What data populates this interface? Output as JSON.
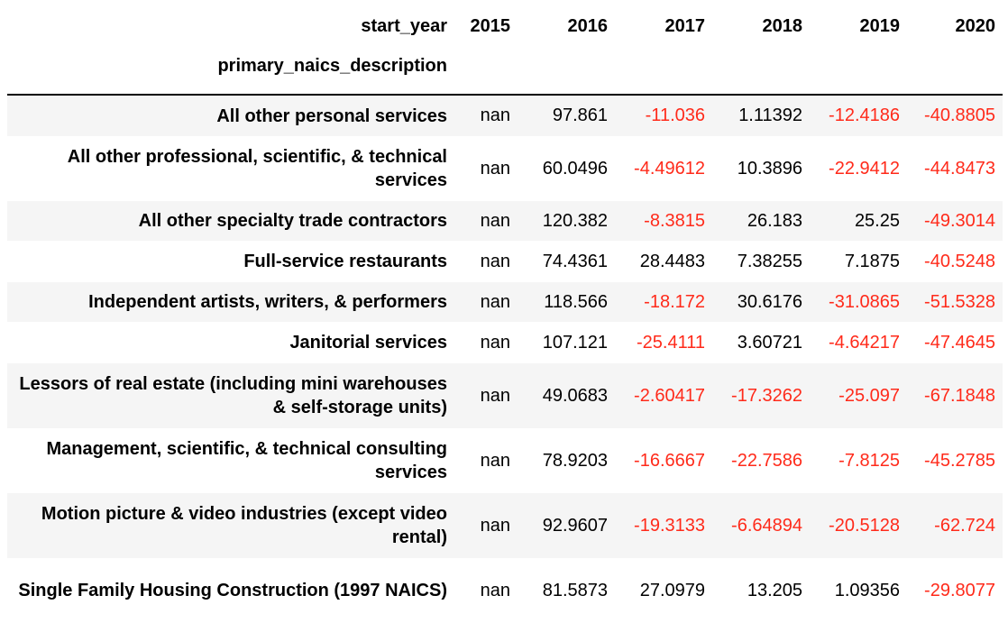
{
  "header": {
    "columns_label": "start_year",
    "index_label": "primary_naics_description",
    "years": [
      "2015",
      "2016",
      "2017",
      "2018",
      "2019",
      "2020"
    ]
  },
  "rows": [
    {
      "name": "All other personal services",
      "values": [
        "nan",
        "97.861",
        "-11.036",
        "1.11392",
        "-12.4186",
        "-40.8805"
      ]
    },
    {
      "name": "All other professional, scientific, & technical services",
      "values": [
        "nan",
        "60.0496",
        "-4.49612",
        "10.3896",
        "-22.9412",
        "-44.8473"
      ]
    },
    {
      "name": "All other specialty trade contractors",
      "values": [
        "nan",
        "120.382",
        "-8.3815",
        "26.183",
        "25.25",
        "-49.3014"
      ]
    },
    {
      "name": "Full-service restaurants",
      "values": [
        "nan",
        "74.4361",
        "28.4483",
        "7.38255",
        "7.1875",
        "-40.5248"
      ]
    },
    {
      "name": "Independent artists, writers, & performers",
      "values": [
        "nan",
        "118.566",
        "-18.172",
        "30.6176",
        "-31.0865",
        "-51.5328"
      ]
    },
    {
      "name": "Janitorial services",
      "values": [
        "nan",
        "107.121",
        "-25.4111",
        "3.60721",
        "-4.64217",
        "-47.4645"
      ]
    },
    {
      "name": "Lessors of real estate (including mini warehouses & self-storage units)",
      "values": [
        "nan",
        "49.0683",
        "-2.60417",
        "-17.3262",
        "-25.097",
        "-67.1848"
      ]
    },
    {
      "name": "Management, scientific, & technical consulting services",
      "values": [
        "nan",
        "78.9203",
        "-16.6667",
        "-22.7586",
        "-7.8125",
        "-45.2785"
      ]
    },
    {
      "name": "Motion picture & video industries (except video rental)",
      "values": [
        "nan",
        "92.9607",
        "-19.3133",
        "-6.64894",
        "-20.5128",
        "-62.724"
      ]
    },
    {
      "name": "Single Family Housing Construction (1997 NAICS)",
      "values": [
        "nan",
        "81.5873",
        "27.0979",
        "13.205",
        "1.09356",
        "-29.8077"
      ]
    }
  ],
  "colors": {
    "negative": "#ff2a1a",
    "stripe": "#f5f5f5"
  }
}
